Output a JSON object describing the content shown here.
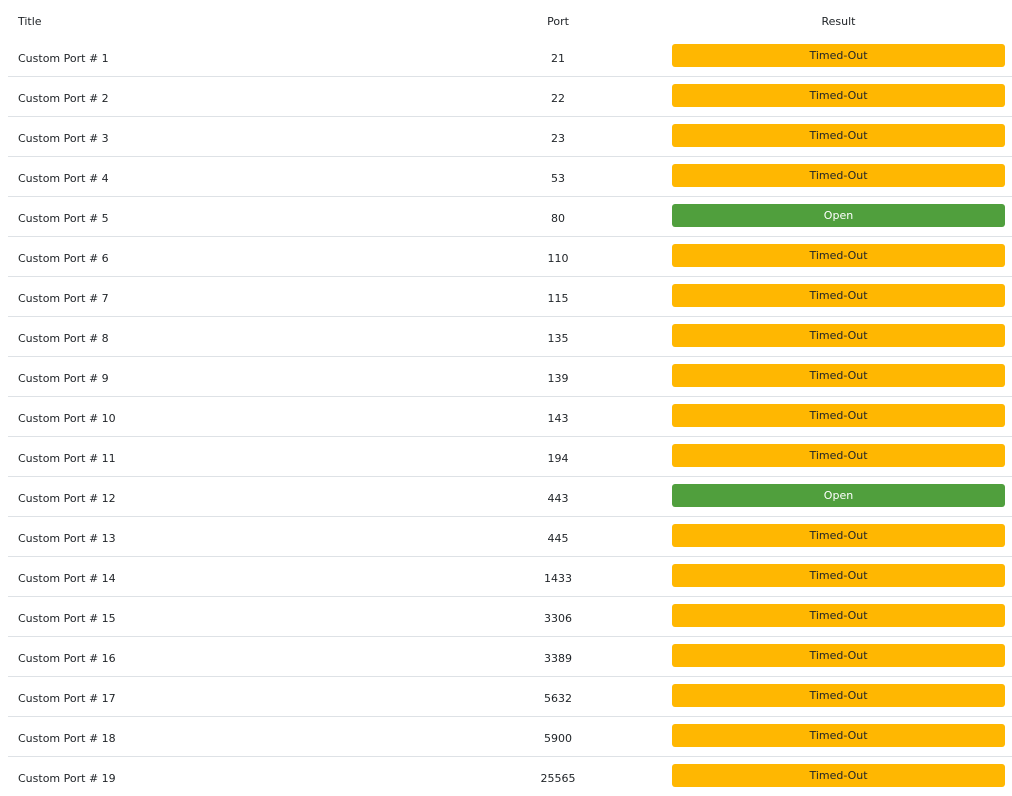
{
  "table": {
    "headers": {
      "title": "Title",
      "port": "Port",
      "result": "Result"
    },
    "colors": {
      "timed_out": "#ffb701",
      "open": "#509f3d"
    },
    "rows": [
      {
        "title": "Custom Port # 1",
        "port": "21",
        "result": "Timed-Out",
        "status": "timed-out"
      },
      {
        "title": "Custom Port # 2",
        "port": "22",
        "result": "Timed-Out",
        "status": "timed-out"
      },
      {
        "title": "Custom Port # 3",
        "port": "23",
        "result": "Timed-Out",
        "status": "timed-out"
      },
      {
        "title": "Custom Port # 4",
        "port": "53",
        "result": "Timed-Out",
        "status": "timed-out"
      },
      {
        "title": "Custom Port # 5",
        "port": "80",
        "result": "Open",
        "status": "open"
      },
      {
        "title": "Custom Port # 6",
        "port": "110",
        "result": "Timed-Out",
        "status": "timed-out"
      },
      {
        "title": "Custom Port # 7",
        "port": "115",
        "result": "Timed-Out",
        "status": "timed-out"
      },
      {
        "title": "Custom Port # 8",
        "port": "135",
        "result": "Timed-Out",
        "status": "timed-out"
      },
      {
        "title": "Custom Port # 9",
        "port": "139",
        "result": "Timed-Out",
        "status": "timed-out"
      },
      {
        "title": "Custom Port # 10",
        "port": "143",
        "result": "Timed-Out",
        "status": "timed-out"
      },
      {
        "title": "Custom Port # 11",
        "port": "194",
        "result": "Timed-Out",
        "status": "timed-out"
      },
      {
        "title": "Custom Port # 12",
        "port": "443",
        "result": "Open",
        "status": "open"
      },
      {
        "title": "Custom Port # 13",
        "port": "445",
        "result": "Timed-Out",
        "status": "timed-out"
      },
      {
        "title": "Custom Port # 14",
        "port": "1433",
        "result": "Timed-Out",
        "status": "timed-out"
      },
      {
        "title": "Custom Port # 15",
        "port": "3306",
        "result": "Timed-Out",
        "status": "timed-out"
      },
      {
        "title": "Custom Port # 16",
        "port": "3389",
        "result": "Timed-Out",
        "status": "timed-out"
      },
      {
        "title": "Custom Port # 17",
        "port": "5632",
        "result": "Timed-Out",
        "status": "timed-out"
      },
      {
        "title": "Custom Port # 18",
        "port": "5900",
        "result": "Timed-Out",
        "status": "timed-out"
      },
      {
        "title": "Custom Port # 19",
        "port": "25565",
        "result": "Timed-Out",
        "status": "timed-out"
      }
    ]
  }
}
